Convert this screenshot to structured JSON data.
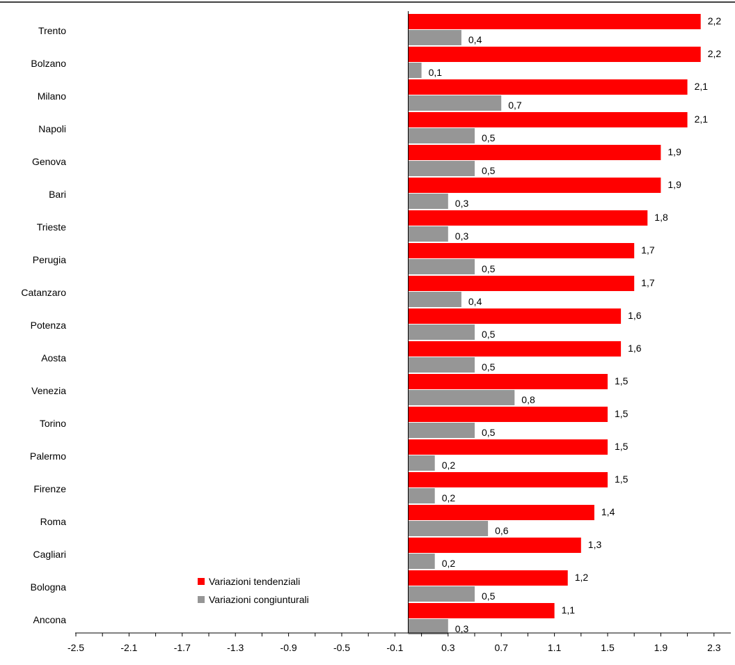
{
  "chart_data": {
    "type": "bar",
    "orientation": "horizontal",
    "categories": [
      "Trento",
      "Bolzano",
      "Milano",
      "Napoli",
      "Genova",
      "Bari",
      "Trieste",
      "Perugia",
      "Catanzaro",
      "Potenza",
      "Aosta",
      "Venezia",
      "Torino",
      "Palermo",
      "Firenze",
      "Roma",
      "Cagliari",
      "Bologna",
      "Ancona"
    ],
    "series": [
      {
        "name": "Variazioni tendenziali",
        "color": "#ff0000",
        "values": [
          2.2,
          2.2,
          2.1,
          2.1,
          1.9,
          1.9,
          1.8,
          1.7,
          1.7,
          1.6,
          1.6,
          1.5,
          1.5,
          1.5,
          1.5,
          1.4,
          1.3,
          1.2,
          1.1
        ],
        "labels": [
          "2,2",
          "2,2",
          "2,1",
          "2,1",
          "1,9",
          "1,9",
          "1,8",
          "1,7",
          "1,7",
          "1,6",
          "1,6",
          "1,5",
          "1,5",
          "1,5",
          "1,5",
          "1,4",
          "1,3",
          "1,2",
          "1,1"
        ]
      },
      {
        "name": "Variazioni congiunturali",
        "color": "#969696",
        "values": [
          0.4,
          0.1,
          0.7,
          0.5,
          0.5,
          0.3,
          0.3,
          0.5,
          0.4,
          0.5,
          0.5,
          0.8,
          0.5,
          0.2,
          0.2,
          0.6,
          0.2,
          0.5,
          0.3
        ],
        "labels": [
          "0,4",
          "0,1",
          "0,7",
          "0,5",
          "0,5",
          "0,3",
          "0,3",
          "0,5",
          "0,4",
          "0,5",
          "0,5",
          "0,8",
          "0,5",
          "0,2",
          "0,2",
          "0,6",
          "0,2",
          "0,5",
          "0,3"
        ]
      }
    ],
    "xticks": [
      "-2.5",
      "-2.1",
      "-1.7",
      "-1.3",
      "-0.9",
      "-0.5",
      "-0.1",
      "0.3",
      "0.7",
      "1.1",
      "1.5",
      "1.9",
      "2.3"
    ],
    "xlim": [
      -2.5,
      2.4
    ],
    "legend_position": "bottom-center-left",
    "grid": false
  }
}
